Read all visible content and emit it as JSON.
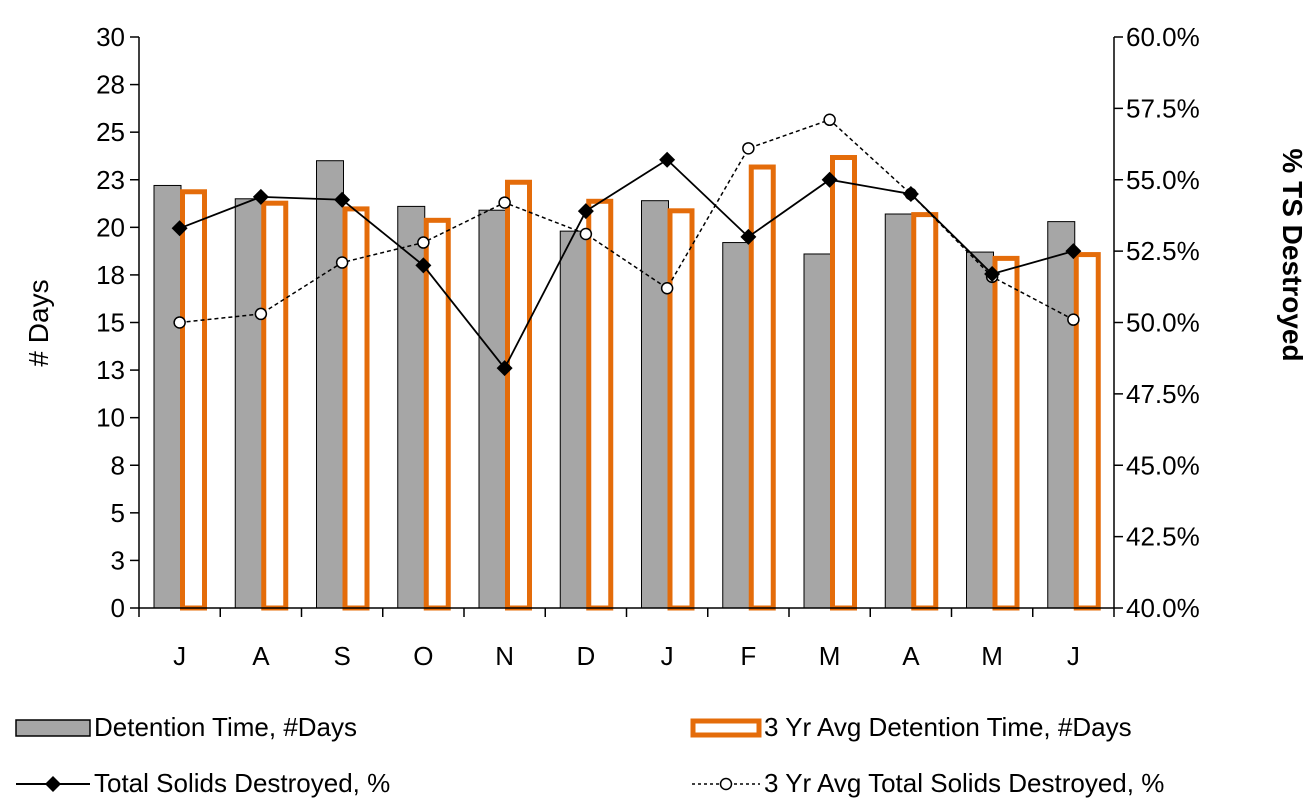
{
  "chart_data": {
    "type": "bar",
    "categories": [
      "J",
      "A",
      "S",
      "O",
      "N",
      "D",
      "J",
      "F",
      "M",
      "A",
      "M",
      "J"
    ],
    "left_axis": {
      "label": "# Days",
      "ylim": [
        0,
        30
      ],
      "tick_values": [
        0,
        2.5,
        5,
        7.5,
        10,
        12.5,
        15,
        17.5,
        20,
        22.5,
        25,
        27.5,
        30
      ],
      "tick_labels": [
        "0",
        "3",
        "5",
        "8",
        "10",
        "13",
        "15",
        "18",
        "20",
        "23",
        "25",
        "28",
        "30"
      ]
    },
    "right_axis": {
      "label": "% TS Destroyed",
      "ylim": [
        40.0,
        60.0
      ],
      "tick_values": [
        40,
        42.5,
        45,
        47.5,
        50,
        52.5,
        55,
        57.5,
        60
      ],
      "tick_labels": [
        "40.0%",
        "42.5%",
        "45.0%",
        "47.5%",
        "50.0%",
        "52.5%",
        "55.0%",
        "57.5%",
        "60.0%"
      ]
    },
    "series": [
      {
        "name": "Detention Time, #Days",
        "type": "bar",
        "axis": "left",
        "color": "#a6a6a6",
        "values": [
          22.2,
          21.5,
          23.5,
          21.1,
          20.9,
          19.8,
          21.4,
          19.2,
          18.6,
          20.7,
          18.7,
          20.3
        ]
      },
      {
        "name": "3 Yr Avg Detention Time, #Days",
        "type": "bar",
        "axis": "left",
        "color": "#e46c0a",
        "values": [
          22.0,
          21.4,
          21.1,
          20.5,
          22.5,
          21.5,
          21.0,
          23.3,
          23.8,
          20.8,
          18.5,
          18.7
        ]
      },
      {
        "name": "Total Solids Destroyed, %",
        "type": "line",
        "axis": "right",
        "color": "#000000",
        "marker": "diamond",
        "values": [
          53.3,
          54.4,
          54.3,
          52.0,
          48.4,
          53.9,
          55.7,
          53.0,
          55.0,
          54.5,
          51.7,
          52.5
        ]
      },
      {
        "name": "3 Yr Avg Total Solids Destroyed, %",
        "type": "line",
        "axis": "right",
        "color": "#000000",
        "marker": "open-circle",
        "dashed": true,
        "values": [
          50.0,
          50.3,
          52.1,
          52.8,
          54.2,
          53.1,
          51.2,
          56.1,
          57.1,
          54.5,
          51.6,
          50.1
        ]
      }
    ],
    "grid": false,
    "legend_position": "bottom"
  }
}
